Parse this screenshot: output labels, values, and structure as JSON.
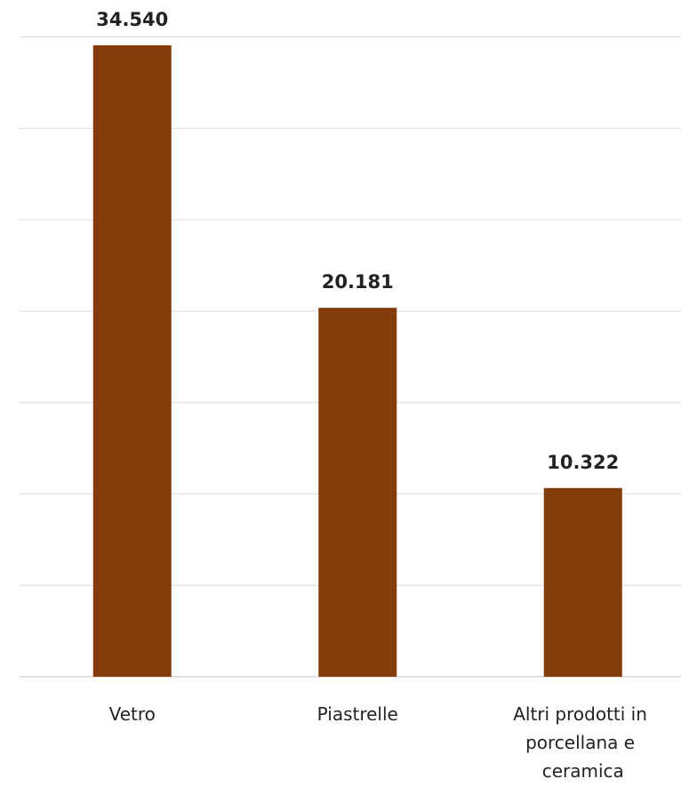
{
  "chart_data": {
    "type": "bar",
    "categories": [
      "Vetro",
      "Piastrelle",
      "Altri prodotti in porcellana e ceramica"
    ],
    "values": [
      34540,
      20181,
      10322
    ],
    "value_labels": [
      "34.540",
      "20.181",
      "10.322"
    ],
    "color": "#843c0c",
    "ylim": [
      0,
      35000
    ],
    "yticks": [
      0,
      5000,
      10000,
      15000,
      20000,
      25000,
      30000,
      35000
    ],
    "grid": true
  }
}
